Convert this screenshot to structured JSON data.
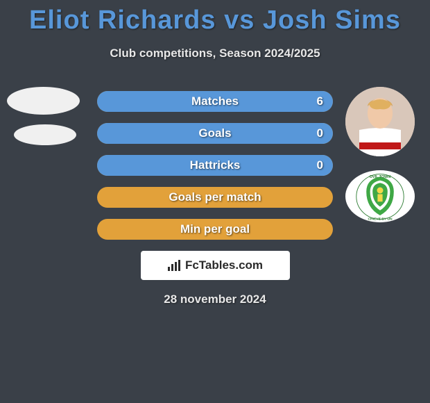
{
  "header": {
    "title": "Eliot Richards vs Josh Sims",
    "title_color": "#5897d9",
    "subtitle": "Club competitions, Season 2024/2025"
  },
  "background_color": "#3a4048",
  "bars": {
    "bg_color": "#e2a13a",
    "value_color": "#5897d9",
    "items": [
      {
        "label": "Matches",
        "left_pct": 0,
        "right_pct": 100,
        "right_value": "6"
      },
      {
        "label": "Goals",
        "left_pct": 0,
        "right_pct": 100,
        "right_value": "0"
      },
      {
        "label": "Hattricks",
        "left_pct": 0,
        "right_pct": 100,
        "right_value": "0"
      },
      {
        "label": "Goals per match",
        "left_pct": 0,
        "right_pct": 0,
        "right_value": ""
      },
      {
        "label": "Min per goal",
        "left_pct": 0,
        "right_pct": 0,
        "right_value": ""
      }
    ]
  },
  "branding": {
    "text": "FcTables.com"
  },
  "date": "28 november 2024",
  "right_player": {
    "name": "Josh Sims",
    "shirt_color_1": "#ffffff",
    "shirt_color_2": "#c01818"
  },
  "team_badge": {
    "bg": "#ffffff",
    "shield": "#3fa845",
    "text_top": "OVIL TOWN",
    "text_bottom": "CHIEVE BY UN"
  }
}
